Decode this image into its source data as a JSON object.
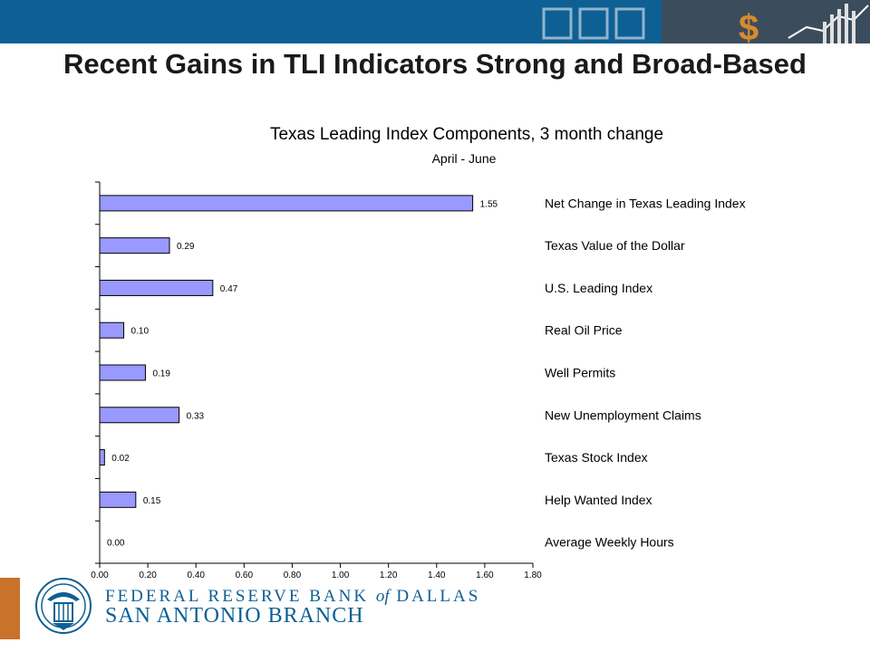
{
  "slide": {
    "title": "Recent Gains in TLI Indicators Strong and Broad-Based"
  },
  "colors": {
    "banner": "#0e5f93",
    "bar_fill": "#9999ff",
    "bar_stroke": "#000000",
    "accent": "#c8722a",
    "brand_text": "#0e5f93"
  },
  "footer": {
    "bank_name_before": "FEDERAL RESERVE BANK",
    "bank_name_of": "of",
    "bank_name_after": "DALLAS",
    "branch_name": "SAN ANTONIO BRANCH"
  },
  "chart_data": {
    "type": "bar",
    "orientation": "horizontal",
    "title": "Texas Leading Index Components, 3 month change",
    "subtitle": "April - June",
    "categories": [
      "Net Change in Texas Leading Index",
      "Texas Value of the Dollar",
      "U.S. Leading Index",
      "Real Oil Price",
      "Well Permits",
      "New Unemployment Claims",
      "Texas Stock Index",
      "Help Wanted Index",
      "Average Weekly Hours"
    ],
    "values": [
      1.55,
      0.29,
      0.47,
      0.1,
      0.19,
      0.33,
      0.02,
      0.15,
      0.0
    ],
    "value_labels": [
      "1.55",
      "0.29",
      "0.47",
      "0.10",
      "0.19",
      "0.33",
      "0.02",
      "0.15",
      "0.00"
    ],
    "xlim": [
      0,
      1.8
    ],
    "x_ticks": [
      "0.00",
      "0.20",
      "0.40",
      "0.60",
      "0.80",
      "1.00",
      "1.20",
      "1.40",
      "1.60",
      "1.80"
    ],
    "grid": false,
    "legend": "none"
  }
}
